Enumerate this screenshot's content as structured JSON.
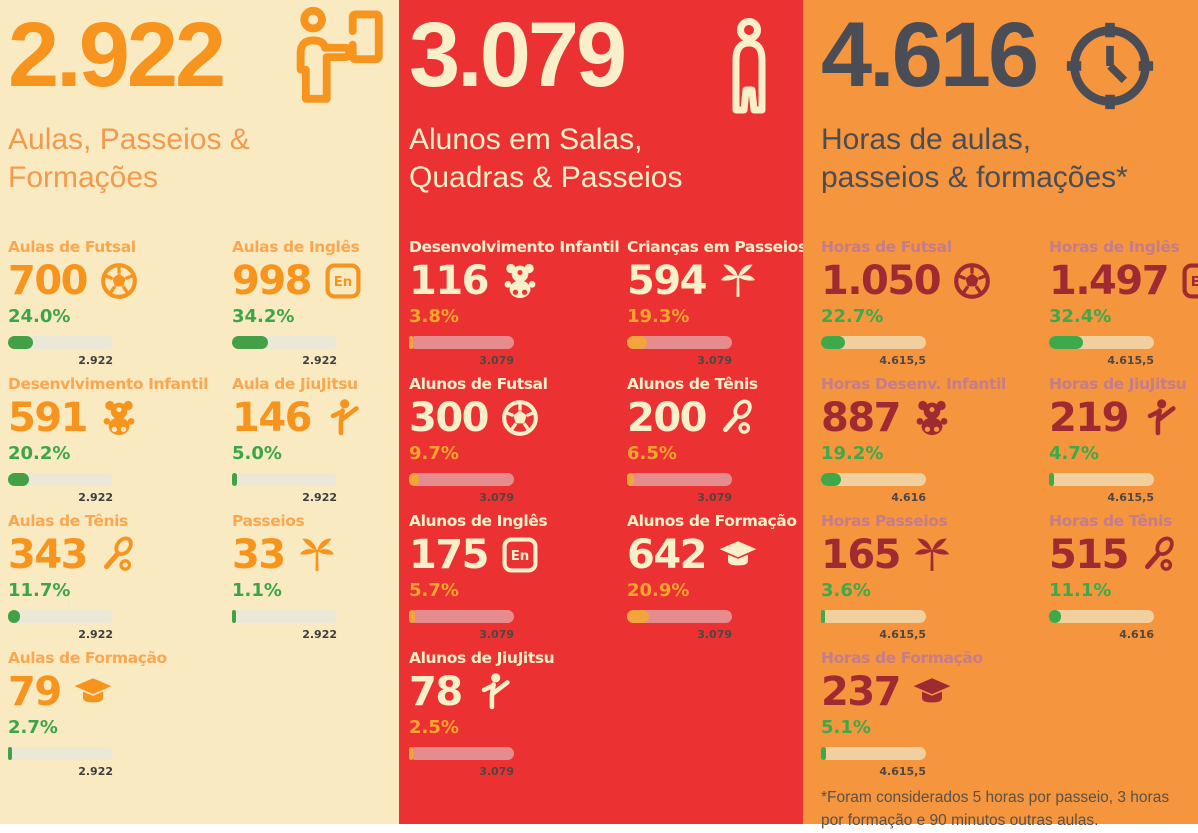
{
  "columns": [
    {
      "id": "aulas",
      "theme": {
        "bg": "#FAEAC2",
        "header_number": "#F7941E",
        "header_subtitle": "#F09B4D",
        "header_icon": "#F7941E",
        "card_title": "#F9A750",
        "card_number": "#F7941E",
        "card_icon": "#F7941E",
        "percent": "#3BA548",
        "bar_track": "#ECE8D8",
        "bar_fill": "#43A047",
        "bar_total": "#3D3D3D",
        "footnote": "#5A5147"
      },
      "header": {
        "total": "2.922",
        "icon": "teacher-presenting",
        "subtitle": "Aulas, Passeios &\nFormações"
      },
      "cards": [
        {
          "title": "Aulas de Futsal",
          "value": "700",
          "icon": "futsal",
          "pct": "24.0%",
          "total": "2.922"
        },
        {
          "title": "Aulas de Inglês",
          "value": "998",
          "icon": "en-badge",
          "pct": "34.2%",
          "total": "2.922"
        },
        {
          "title": "Desenvlvimento Infantil",
          "value": "591",
          "icon": "teddy-bear",
          "pct": "20.2%",
          "total": "2.922"
        },
        {
          "title": "Aula de JiuJitsu",
          "value": "146",
          "icon": "karate-kick",
          "pct": "5.0%",
          "total": "2.922"
        },
        {
          "title": "Aulas de Tênis",
          "value": "343",
          "icon": "tennis-racket",
          "pct": "11.7%",
          "total": "2.922"
        },
        {
          "title": "Passeios",
          "value": "33",
          "icon": "palm-tree",
          "pct": "1.1%",
          "total": "2.922"
        },
        {
          "title": "Aulas de Formação",
          "value": "79",
          "icon": "graduation-cap",
          "pct": "2.7%",
          "total": "2.922"
        }
      ]
    },
    {
      "id": "alunos",
      "theme": {
        "bg": "#EC3133",
        "header_number": "#F9EFC8",
        "header_subtitle": "#F9EFC8",
        "header_icon": "#F9EFC8",
        "card_title": "#F9EFC8",
        "card_number": "#F9EFC8",
        "card_icon": "#F9EFC8",
        "percent": "#F6A62E",
        "bar_track": "#E68C8E",
        "bar_fill": "#F4A43C",
        "bar_total": "#4D4742",
        "footnote": "#4D4742"
      },
      "header": {
        "total": "3.079",
        "icon": "person",
        "subtitle": "Alunos em Salas,\nQuadras & Passeios"
      },
      "cards": [
        {
          "title": "Desenvolvimento Infantil",
          "value": "116",
          "icon": "teddy-bear",
          "pct": "3.8%",
          "total": "3.079"
        },
        {
          "title": "Crianças em Passeios",
          "value": "594",
          "icon": "palm-tree",
          "pct": "19.3%",
          "total": "3.079"
        },
        {
          "title": "Alunos de Futsal",
          "value": "300",
          "icon": "futsal",
          "pct": "9.7%",
          "total": "3.079"
        },
        {
          "title": "Alunos de Tênis",
          "value": "200",
          "icon": "tennis-racket",
          "pct": "6.5%",
          "total": "3.079"
        },
        {
          "title": "Alunos de Inglês",
          "value": "175",
          "icon": "en-badge",
          "pct": "5.7%",
          "total": "3.079"
        },
        {
          "title": "Alunos de Formação",
          "value": "642",
          "icon": "graduation-cap",
          "pct": "20.9%",
          "total": "3.079"
        },
        {
          "title": "Alunos de JiuJitsu",
          "value": "78",
          "icon": "karate-kick",
          "pct": "2.5%",
          "total": "3.079"
        }
      ]
    },
    {
      "id": "horas",
      "theme": {
        "bg": "#F5953E",
        "header_number": "#4A4D56",
        "header_subtitle": "#4A4D56",
        "header_icon": "#4A4D56",
        "card_title": "#C57C8B",
        "card_number": "#A02A31",
        "card_icon": "#A02A31",
        "percent": "#3EA94B",
        "bar_track": "#F2CF9F",
        "bar_fill": "#3EA94B",
        "bar_total": "#514740",
        "footnote": "#5A5147"
      },
      "header": {
        "total": "4.616",
        "icon": "clock",
        "subtitle": "Horas de aulas,\npasseios & formações*"
      },
      "cards": [
        {
          "title": "Horas de Futsal",
          "value": "1.050",
          "icon": "futsal",
          "pct": "22.7%",
          "total": "4.615,5"
        },
        {
          "title": "Horas de Inglês",
          "value": "1.497",
          "icon": "en-badge",
          "pct": "32.4%",
          "total": "4.615,5"
        },
        {
          "title": "Horas Desenv. Infantil",
          "value": "887",
          "icon": "teddy-bear",
          "pct": "19.2%",
          "total": "4.616"
        },
        {
          "title": "Horas de JiuJitsu",
          "value": "219",
          "icon": "karate-kick",
          "pct": "4.7%",
          "total": "4.615,5"
        },
        {
          "title": "Horas Passeios",
          "value": "165",
          "icon": "palm-tree",
          "pct": "3.6%",
          "total": "4.615,5"
        },
        {
          "title": "Horas de Tênis",
          "value": "515",
          "icon": "tennis-racket",
          "pct": "11.1%",
          "total": "4.616"
        },
        {
          "title": "Horas de Formação",
          "value": "237",
          "icon": "graduation-cap",
          "pct": "5.1%",
          "total": "4.615,5"
        }
      ]
    }
  ],
  "footnote": "*Foram considerados 5 horas por passeio, 3 horas por formação e 90 minutos outras aulas.",
  "chart_data": [
    {
      "type": "bar",
      "title": "Aulas, Passeios & Formações",
      "total": 2922,
      "categories": [
        "Aulas de Futsal",
        "Aulas de Inglês",
        "Desenvlvimento Infantil",
        "Aula de JiuJitsu",
        "Aulas de Tênis",
        "Passeios",
        "Aulas de Formação"
      ],
      "values": [
        700,
        998,
        591,
        146,
        343,
        33,
        79
      ],
      "percentages": [
        24.0,
        34.2,
        20.2,
        5.0,
        11.7,
        1.1,
        2.7
      ],
      "xlabel": "",
      "ylabel": "",
      "xlim": [
        0,
        2922
      ]
    },
    {
      "type": "bar",
      "title": "Alunos em Salas, Quadras & Passeios",
      "total": 3079,
      "categories": [
        "Desenvolvimento Infantil",
        "Crianças em Passeios",
        "Alunos de Futsal",
        "Alunos de Tênis",
        "Alunos de Inglês",
        "Alunos de Formação",
        "Alunos de JiuJitsu"
      ],
      "values": [
        116,
        594,
        300,
        200,
        175,
        642,
        78
      ],
      "percentages": [
        3.8,
        19.3,
        9.7,
        6.5,
        5.7,
        20.9,
        2.5
      ],
      "xlabel": "",
      "ylabel": "",
      "xlim": [
        0,
        3079
      ]
    },
    {
      "type": "bar",
      "title": "Horas de aulas, passeios & formações*",
      "total": 4616,
      "categories": [
        "Horas de Futsal",
        "Horas de Inglês",
        "Horas Desenv. Infantil",
        "Horas de JiuJitsu",
        "Horas Passeios",
        "Horas de Tênis",
        "Horas de Formação"
      ],
      "values": [
        1050,
        1497,
        887,
        219,
        165,
        515,
        237
      ],
      "percentages": [
        22.7,
        32.4,
        19.2,
        4.7,
        3.6,
        11.1,
        5.1
      ],
      "xlabel": "",
      "ylabel": "",
      "xlim": [
        0,
        4616
      ]
    }
  ]
}
